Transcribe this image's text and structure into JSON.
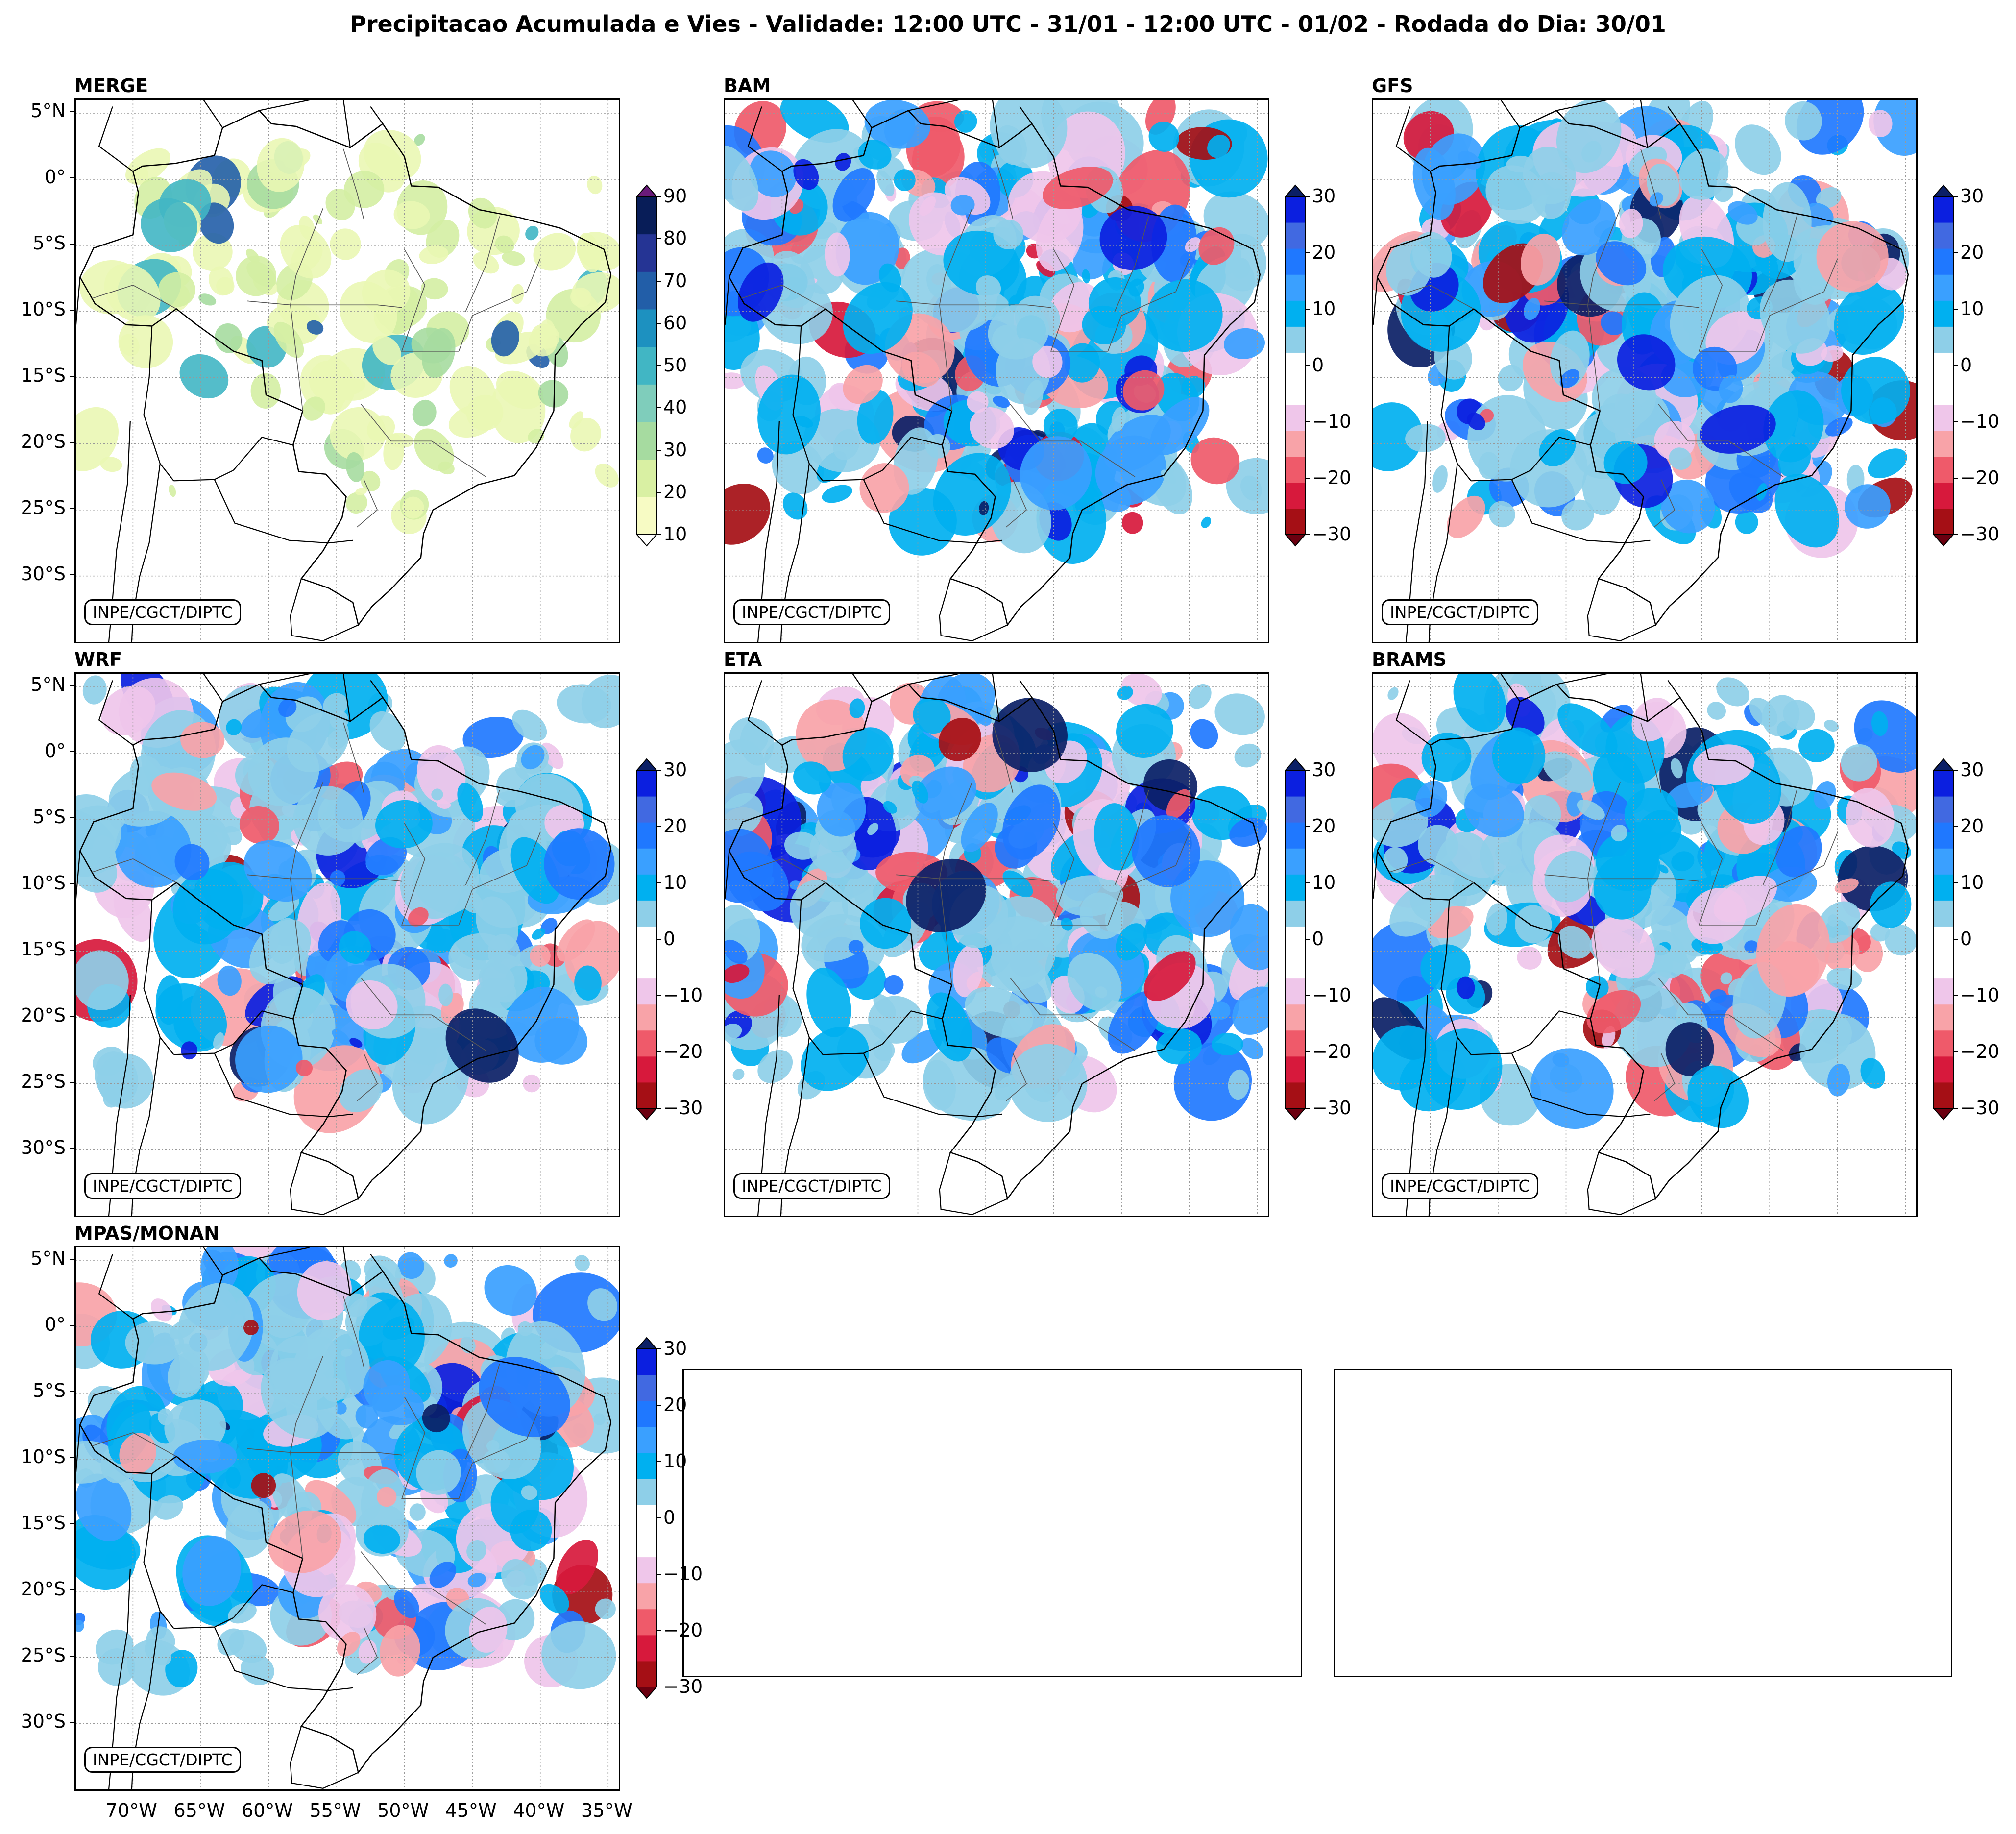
{
  "figure_title": "Precipitacao Acumulada e Vies - Validade: 12:00 UTC - 31/01 - 12:00 UTC - 01/02 - Rodada do Dia: 30/01",
  "credit": "INPE/CGCT/DIPTC",
  "lat_labels": [
    "5°N",
    "0°",
    "5°S",
    "10°S",
    "15°S",
    "20°S",
    "25°S",
    "30°S"
  ],
  "lon_labels": [
    "70°W",
    "65°W",
    "60°W",
    "55°W",
    "50°W",
    "45°W",
    "40°W",
    "35°W"
  ],
  "panels": [
    {
      "title": "MERGE",
      "kind": "precip"
    },
    {
      "title": "BAM",
      "kind": "bias"
    },
    {
      "title": "GFS",
      "kind": "bias"
    },
    {
      "title": "WRF",
      "kind": "bias"
    },
    {
      "title": "ETA",
      "kind": "bias"
    },
    {
      "title": "BRAMS",
      "kind": "bias"
    },
    {
      "title": "MPAS/MONAN",
      "kind": "bias"
    }
  ],
  "colorbars": {
    "precip": {
      "labels": [
        "90",
        "80",
        "70",
        "60",
        "50",
        "40",
        "30",
        "20",
        "10"
      ],
      "colors": [
        "#f7fbc4",
        "#d9f0a3",
        "#a6dba0",
        "#7fcdbb",
        "#41b6c4",
        "#1d91c0",
        "#225ea8",
        "#253494",
        "#081d58"
      ],
      "over_color": "#6a1b7a",
      "under_color": "#ffffff"
    },
    "bias": {
      "labels": [
        "30",
        "20",
        "10",
        "0",
        "−10",
        "−20",
        "−30"
      ],
      "colors": [
        "#a50f15",
        "#d7193c",
        "#ef5a6a",
        "#f8a3a8",
        "#efc6ea",
        "#ffffff",
        "#ffffff",
        "#8ecfe8",
        "#00b0f0",
        "#3aa0ff",
        "#1f78ff",
        "#4169e1",
        "#0b1fe0"
      ],
      "over_color": "#0b1f66",
      "under_color": "#6b0010"
    }
  },
  "map_colors": {
    "merge_fill": [
      "#eaf7b4",
      "#d4eea3",
      "#a6dba0",
      "#41b6c4",
      "#225ea8"
    ],
    "positive_fill": [
      "#8ecfe8",
      "#00b0f0",
      "#3aa0ff",
      "#1f78ff",
      "#0b1fe0",
      "#0b1f66"
    ],
    "negative_fill": [
      "#efc6ea",
      "#f8a3a8",
      "#ef5a6a",
      "#d7193c",
      "#a50f15"
    ]
  }
}
